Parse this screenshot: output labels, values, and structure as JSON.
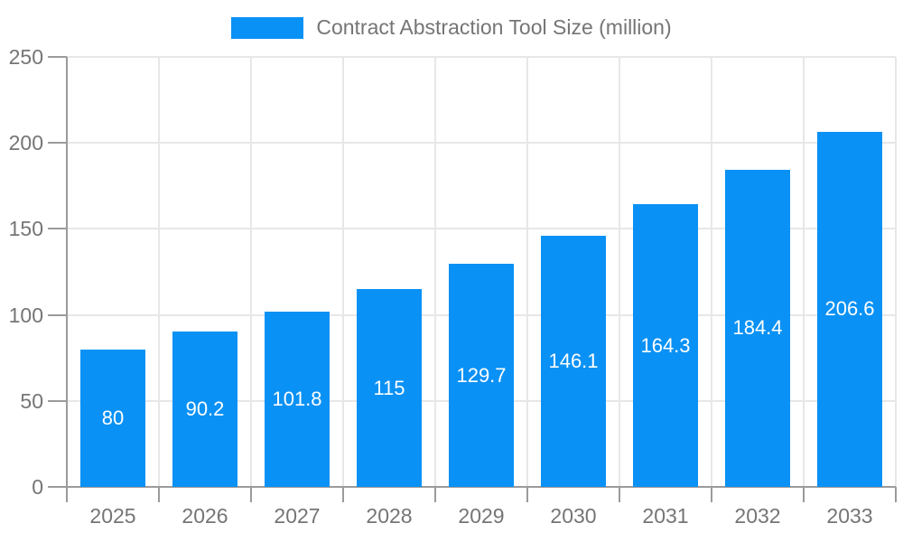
{
  "legend": {
    "label": "Contract Abstraction Tool Size (million)",
    "position": "top-center"
  },
  "chart_data": {
    "type": "bar",
    "title": "Contract Abstraction Tool Size (million)",
    "categories": [
      "2025",
      "2026",
      "2027",
      "2028",
      "2029",
      "2030",
      "2031",
      "2032",
      "2033"
    ],
    "series": [
      {
        "name": "Contract Abstraction Tool Size (million)",
        "values": [
          80,
          90.2,
          101.8,
          115,
          129.7,
          146.1,
          164.3,
          184.4,
          206.6
        ]
      }
    ],
    "value_labels": [
      "80",
      "90.2",
      "101.8",
      "115",
      "129.7",
      "146.1",
      "164.3",
      "184.4",
      "206.6"
    ],
    "xlabel": "",
    "ylabel": "",
    "ylim": [
      0,
      250
    ],
    "yticks": [
      0,
      50,
      100,
      150,
      200,
      250
    ],
    "grid": true,
    "legend_position": "top",
    "colors": {
      "bar": "#0A91F5",
      "grid": "#E7E7E7",
      "axis": "#9B9B9B",
      "tick_label": "#757575",
      "legend_text": "#757575",
      "value_label": "#FFFFFF",
      "background": "#FFFFFF"
    }
  }
}
